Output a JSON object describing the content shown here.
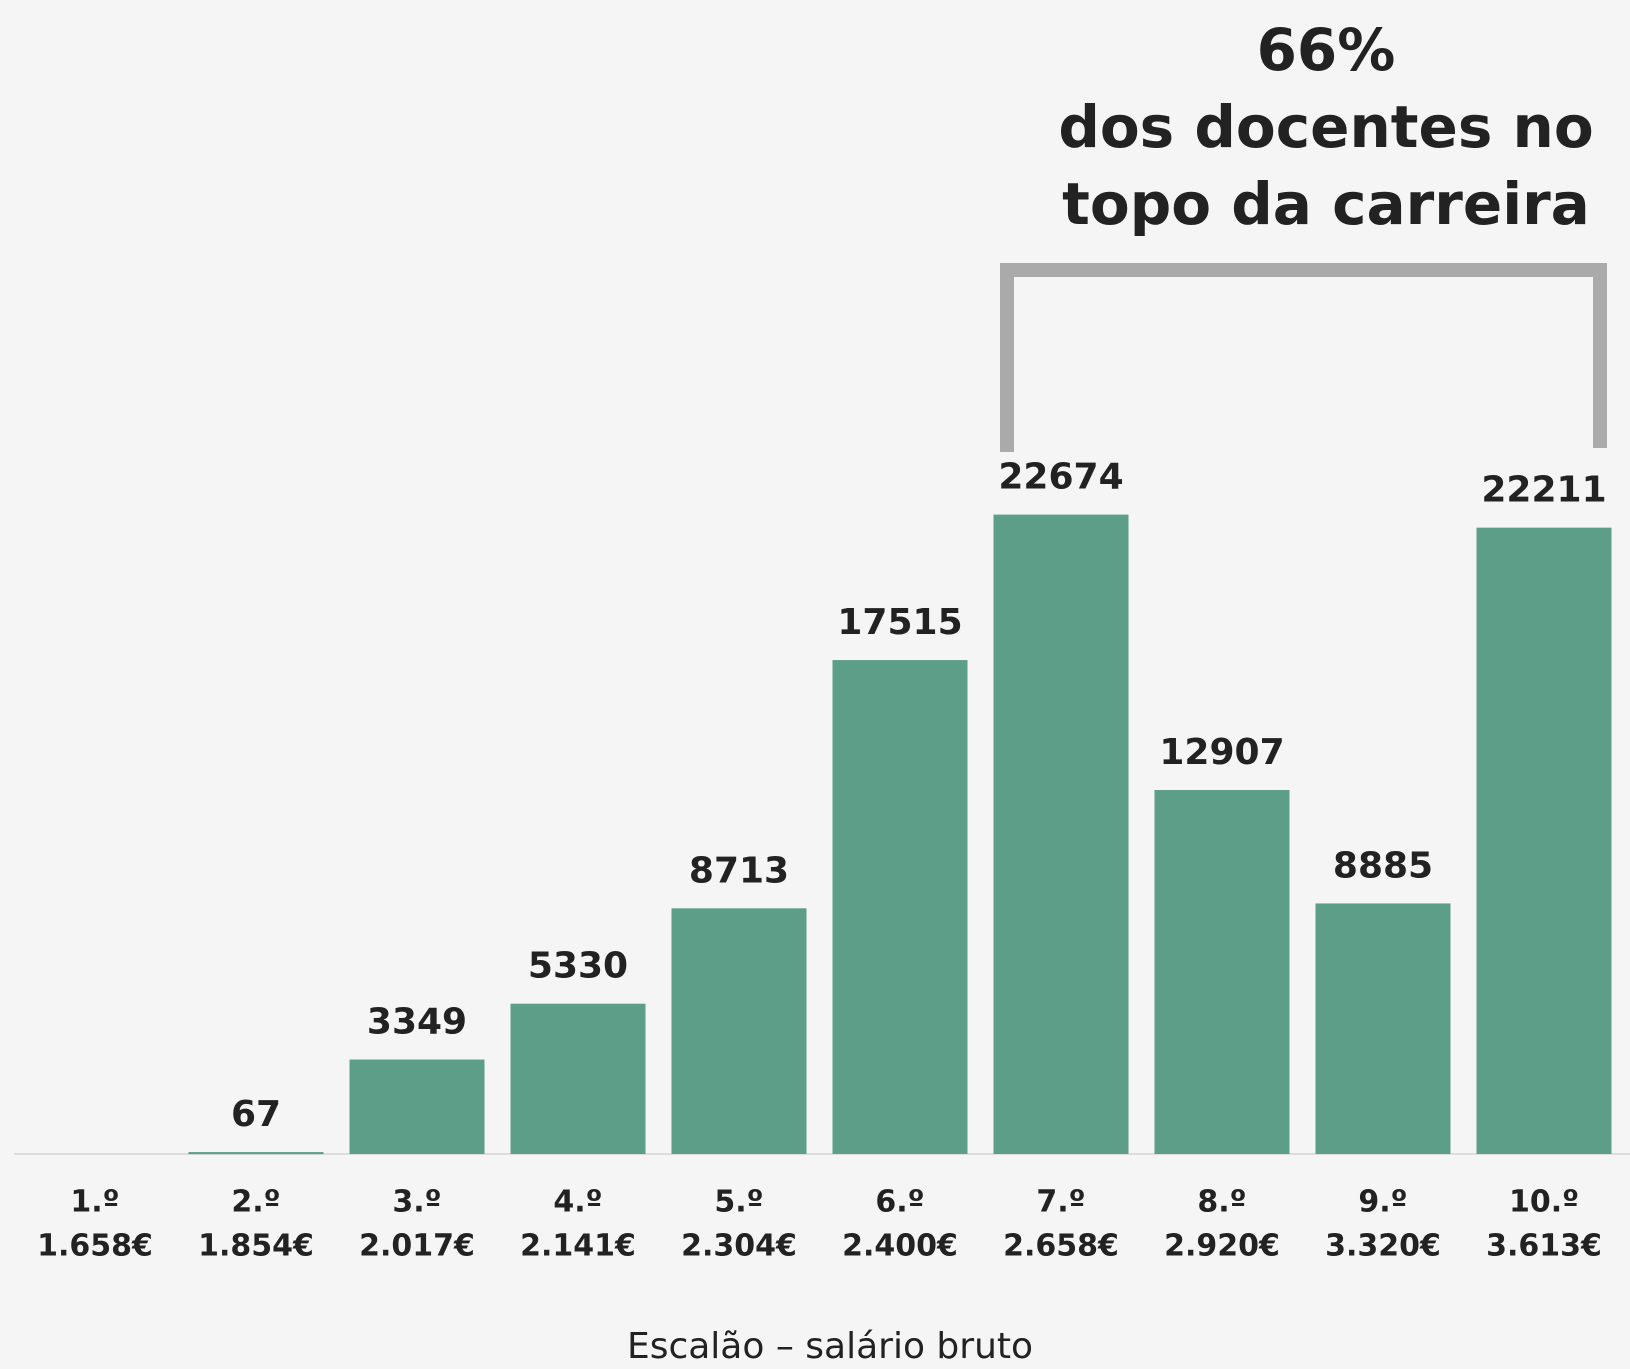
{
  "chart_data": {
    "type": "bar",
    "categories": [
      "1.º",
      "2.º",
      "3.º",
      "4.º",
      "5.º",
      "6.º",
      "7.º",
      "8.º",
      "9.º",
      "10.º"
    ],
    "salaries": [
      "1.658€",
      "1.854€",
      "2.017€",
      "2.141€",
      "2.304€",
      "2.400€",
      "2.658€",
      "2.920€",
      "3.320€",
      "3.613€"
    ],
    "values": [
      null,
      67,
      3349,
      5330,
      8713,
      17515,
      22674,
      12907,
      8885,
      22211
    ],
    "color": "#5c9e87",
    "ylim": [
      0,
      25000
    ],
    "x_axis_label": "Escalão – salário bruto",
    "annotation": [
      "66%",
      "dos docentes no",
      "topo da carreira"
    ]
  }
}
